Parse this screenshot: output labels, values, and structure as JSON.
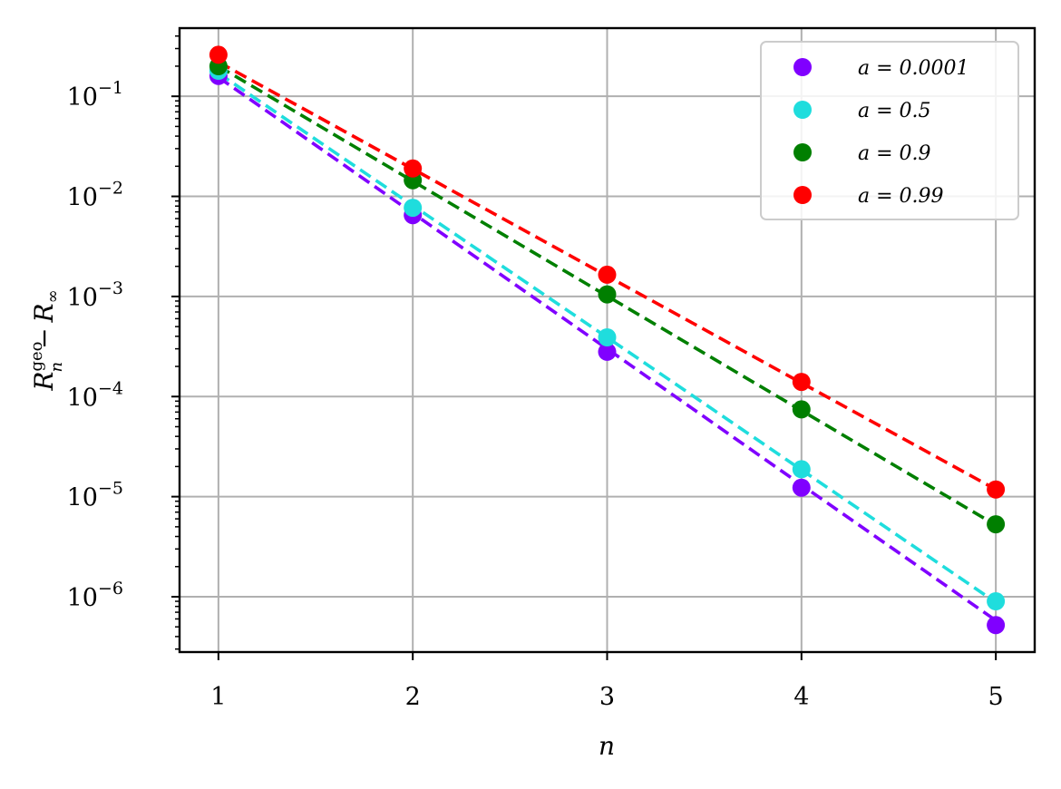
{
  "chart_data": {
    "type": "scatter",
    "xlabel": "n",
    "ylabel": "R_n^geo − R_∞",
    "ylabel_parts": {
      "main": "R",
      "sub": "n",
      "sup": "geo",
      "minus": "−",
      "rest": "R",
      "rest_sub": "∞"
    },
    "x": [
      1,
      2,
      3,
      4,
      5
    ],
    "xlim": [
      0.8,
      5.2
    ],
    "ylim": [
      2.8e-07,
      0.48
    ],
    "yscale": "log",
    "grid": true,
    "legend_position": "top-right",
    "x_ticks": [
      1,
      2,
      3,
      4,
      5
    ],
    "y_ticks": [
      {
        "value": 0.1,
        "base": "10",
        "exp": "−1"
      },
      {
        "value": 0.01,
        "base": "10",
        "exp": "−2"
      },
      {
        "value": 0.001,
        "base": "10",
        "exp": "−3"
      },
      {
        "value": 0.0001,
        "base": "10",
        "exp": "−4"
      },
      {
        "value": 1e-05,
        "base": "10",
        "exp": "−5"
      },
      {
        "value": 1e-06,
        "base": "10",
        "exp": "−6"
      }
    ],
    "series": [
      {
        "name": "a = 0.0001",
        "color": "#8000ff",
        "points": [
          0.16,
          0.0065,
          0.00028,
          1.23e-05,
          5.2e-07
        ],
        "fit": [
          0.155,
          0.0068,
          0.0003,
          1.31e-05,
          5.8e-07
        ]
      },
      {
        "name": "a = 0.5",
        "color": "#1fdddd",
        "points": [
          0.18,
          0.0077,
          0.00039,
          1.88e-05,
          9e-07
        ],
        "fit": [
          0.17,
          0.0081,
          0.00039,
          1.85e-05,
          8.8e-07
        ]
      },
      {
        "name": "a = 0.9",
        "color": "#007f00",
        "points": [
          0.2,
          0.0145,
          0.00105,
          7.45e-05,
          5.3e-06
        ],
        "fit": [
          0.2,
          0.0142,
          0.00101,
          7.25e-05,
          5.2e-06
        ]
      },
      {
        "name": "a = 0.99",
        "color": "#ff0000",
        "points": [
          0.26,
          0.019,
          0.00165,
          0.00014,
          1.18e-05
        ],
        "fit": [
          0.22,
          0.0188,
          0.0016,
          0.000137,
          1.18e-05
        ]
      }
    ]
  }
}
